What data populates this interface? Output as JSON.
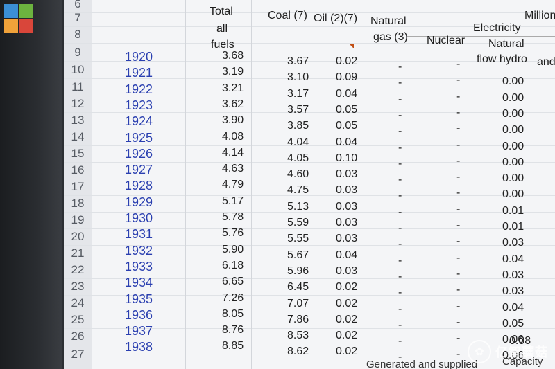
{
  "window": {
    "logo_colors": [
      "#3b8fd6",
      "#6cb33f",
      "#f0a23a",
      "#d9463a"
    ]
  },
  "headers": {
    "unit": "Million",
    "total_all_fuels_1": "Total",
    "total_all_fuels_2": "all",
    "total_all_fuels_3": "fuels",
    "coal": "Coal (7)",
    "oil": "Oil (2)(7)",
    "natural_gas_1": "Natural",
    "natural_gas_2": "gas (3)",
    "electricity": "Electricity",
    "nuclear": "Nuclear",
    "natural_flow_hydro_1": "Natural",
    "natural_flow_hydro_2": "flow hydro",
    "and": "and",
    "bottom_generated": "Generated and supplied",
    "bottom_capacity": "Capacity"
  },
  "row_numbers": [
    "6",
    "7",
    "8",
    "9",
    "10",
    "11",
    "12",
    "13",
    "14",
    "15",
    "16",
    "17",
    "18",
    "19",
    "20",
    "21",
    "22",
    "23",
    "24",
    "25",
    "26",
    "27"
  ],
  "rows": [
    {
      "year": "1920",
      "total": "3.68",
      "coal": "3.67",
      "oil": "0.02",
      "gas": "-",
      "nuclear": "-",
      "hydro": ""
    },
    {
      "year": "1921",
      "total": "3.19",
      "coal": "3.10",
      "oil": "0.09",
      "gas": "-",
      "nuclear": "-",
      "hydro": "0.00"
    },
    {
      "year": "1922",
      "total": "3.21",
      "coal": "3.17",
      "oil": "0.04",
      "gas": "-",
      "nuclear": "-",
      "hydro": "0.00"
    },
    {
      "year": "1923",
      "total": "3.62",
      "coal": "3.57",
      "oil": "0.05",
      "gas": "-",
      "nuclear": "-",
      "hydro": "0.00"
    },
    {
      "year": "1924",
      "total": "3.90",
      "coal": "3.85",
      "oil": "0.05",
      "gas": "-",
      "nuclear": "-",
      "hydro": "0.00"
    },
    {
      "year": "1925",
      "total": "4.08",
      "coal": "4.04",
      "oil": "0.04",
      "gas": "-",
      "nuclear": "-",
      "hydro": "0.00"
    },
    {
      "year": "1926",
      "total": "4.14",
      "coal": "4.05",
      "oil": "0.10",
      "gas": "-",
      "nuclear": "-",
      "hydro": "0.00"
    },
    {
      "year": "1927",
      "total": "4.63",
      "coal": "4.60",
      "oil": "0.03",
      "gas": "-",
      "nuclear": "-",
      "hydro": "0.00"
    },
    {
      "year": "1928",
      "total": "4.79",
      "coal": "4.75",
      "oil": "0.03",
      "gas": "-",
      "nuclear": "-",
      "hydro": "0.00"
    },
    {
      "year": "1929",
      "total": "5.17",
      "coal": "5.13",
      "oil": "0.03",
      "gas": "-",
      "nuclear": "-",
      "hydro": "0.01"
    },
    {
      "year": "1930",
      "total": "5.78",
      "coal": "5.59",
      "oil": "0.03",
      "gas": "-",
      "nuclear": "-",
      "hydro": "0.01"
    },
    {
      "year": "1931",
      "total": "5.76",
      "coal": "5.55",
      "oil": "0.03",
      "gas": "-",
      "nuclear": "-",
      "hydro": "0.03"
    },
    {
      "year": "1932",
      "total": "5.90",
      "coal": "5.67",
      "oil": "0.04",
      "gas": "-",
      "nuclear": "-",
      "hydro": "0.04"
    },
    {
      "year": "1933",
      "total": "6.18",
      "coal": "5.96",
      "oil": "0.03",
      "gas": "-",
      "nuclear": "-",
      "hydro": "0.03"
    },
    {
      "year": "1934",
      "total": "6.65",
      "coal": "6.45",
      "oil": "0.02",
      "gas": "-",
      "nuclear": "-",
      "hydro": "0.03"
    },
    {
      "year": "1935",
      "total": "7.26",
      "coal": "7.07",
      "oil": "0.02",
      "gas": "-",
      "nuclear": "-",
      "hydro": "0.04"
    },
    {
      "year": "1936",
      "total": "8.05",
      "coal": "7.86",
      "oil": "0.02",
      "gas": "-",
      "nuclear": "-",
      "hydro": "0.05"
    },
    {
      "year": "1937",
      "total": "8.76",
      "coal": "8.53",
      "oil": "0.02",
      "gas": "-",
      "nuclear": "-",
      "hydro": "0.06"
    },
    {
      "year": "1938",
      "total": "8.85",
      "coal": "8.62",
      "oil": "0.02",
      "gas": "-",
      "nuclear": "-",
      "hydro": "0.06"
    }
  ],
  "extra_hydro": "0.08",
  "watermark_text": "亿智蘑菇",
  "colors": {
    "year_blue": "#2a3fb0",
    "sheet_bg": "#f4f5f7",
    "indicator": "#c25016"
  }
}
